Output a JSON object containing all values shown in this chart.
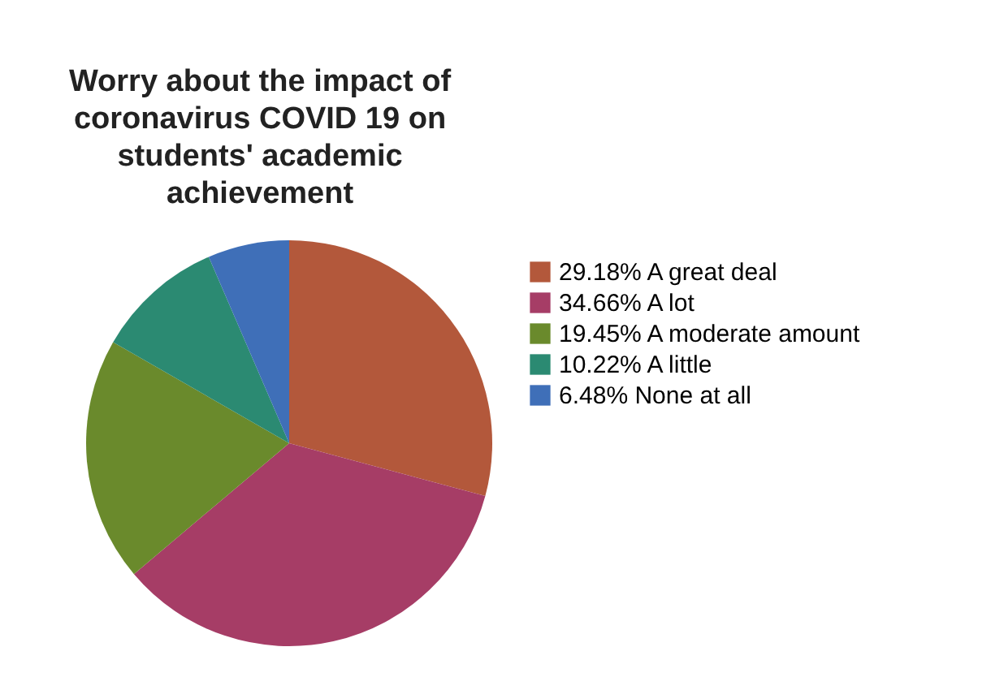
{
  "chart_data": {
    "type": "pie",
    "title": "Worry about the impact of\ncoronavirus COVID 19 on\nstudents' academic\nachievement",
    "categories": [
      "A great deal",
      "A lot",
      "A moderate amount",
      "A little",
      "None at all"
    ],
    "values": [
      29.18,
      34.66,
      19.45,
      10.22,
      6.48
    ],
    "value_labels": [
      "29.18%",
      "34.66%",
      "19.45%",
      "10.22%",
      "6.48%"
    ],
    "colors": [
      "#b3583b",
      "#a63d66",
      "#6a8a2c",
      "#2b8a72",
      "#3f6fb8"
    ],
    "legend": "right"
  }
}
